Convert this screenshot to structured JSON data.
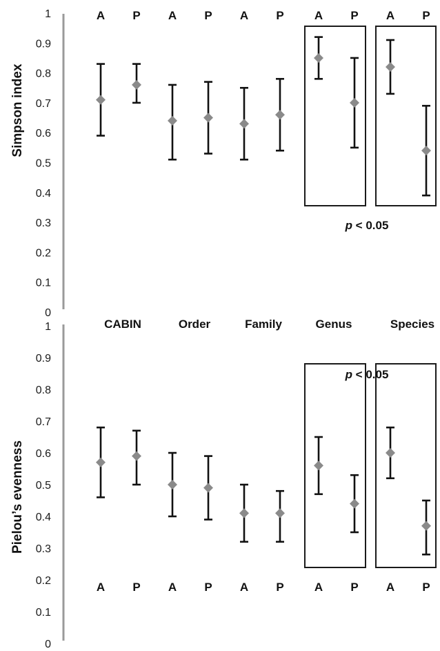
{
  "chart_data": [
    {
      "type": "scatter",
      "ylabel": "Simpson index",
      "ylim": [
        0,
        1
      ],
      "yticks": [
        "0",
        "0.1",
        "0.2",
        "0.3",
        "0.4",
        "0.5",
        "0.6",
        "0.7",
        "0.8",
        "0.9",
        "1"
      ],
      "groups": [
        "CABIN",
        "Order",
        "Family",
        "Genus",
        "Species"
      ],
      "categories": [
        "A",
        "P",
        "A",
        "P",
        "A",
        "P",
        "A",
        "P",
        "A",
        "P"
      ],
      "points": [
        {
          "group": "CABIN",
          "label": "A",
          "mean": 0.71,
          "low": 0.59,
          "high": 0.83
        },
        {
          "group": "CABIN",
          "label": "P",
          "mean": 0.76,
          "low": 0.7,
          "high": 0.83
        },
        {
          "group": "Order",
          "label": "A",
          "mean": 0.64,
          "low": 0.51,
          "high": 0.76
        },
        {
          "group": "Order",
          "label": "P",
          "mean": 0.65,
          "low": 0.53,
          "high": 0.77
        },
        {
          "group": "Family",
          "label": "A",
          "mean": 0.63,
          "low": 0.51,
          "high": 0.75
        },
        {
          "group": "Family",
          "label": "P",
          "mean": 0.66,
          "low": 0.54,
          "high": 0.78
        },
        {
          "group": "Genus",
          "label": "A",
          "mean": 0.85,
          "low": 0.78,
          "high": 0.92
        },
        {
          "group": "Genus",
          "label": "P",
          "mean": 0.7,
          "low": 0.55,
          "high": 0.85
        },
        {
          "group": "Species",
          "label": "A",
          "mean": 0.82,
          "low": 0.73,
          "high": 0.91
        },
        {
          "group": "Species",
          "label": "P",
          "mean": 0.54,
          "low": 0.39,
          "high": 0.69
        }
      ],
      "boxed_groups": [
        "Genus",
        "Species"
      ],
      "significance": {
        "p": "p",
        "text": " < 0.05"
      }
    },
    {
      "type": "scatter",
      "ylabel": "Pielou’s evenness",
      "ylim": [
        0,
        1
      ],
      "yticks": [
        "0",
        "0.1",
        "0.2",
        "0.3",
        "0.4",
        "0.5",
        "0.6",
        "0.7",
        "0.8",
        "0.9",
        "1"
      ],
      "groups": [
        "CABIN",
        "Order",
        "Family",
        "Genus",
        "Species"
      ],
      "categories": [
        "A",
        "P",
        "A",
        "P",
        "A",
        "P",
        "A",
        "P",
        "A",
        "P"
      ],
      "points": [
        {
          "group": "CABIN",
          "label": "A",
          "mean": 0.57,
          "low": 0.46,
          "high": 0.68
        },
        {
          "group": "CABIN",
          "label": "P",
          "mean": 0.59,
          "low": 0.5,
          "high": 0.67
        },
        {
          "group": "Order",
          "label": "A",
          "mean": 0.5,
          "low": 0.4,
          "high": 0.6
        },
        {
          "group": "Order",
          "label": "P",
          "mean": 0.49,
          "low": 0.39,
          "high": 0.59
        },
        {
          "group": "Family",
          "label": "A",
          "mean": 0.41,
          "low": 0.32,
          "high": 0.5
        },
        {
          "group": "Family",
          "label": "P",
          "mean": 0.41,
          "low": 0.32,
          "high": 0.48
        },
        {
          "group": "Genus",
          "label": "A",
          "mean": 0.56,
          "low": 0.47,
          "high": 0.65
        },
        {
          "group": "Genus",
          "label": "P",
          "mean": 0.44,
          "low": 0.35,
          "high": 0.53
        },
        {
          "group": "Species",
          "label": "A",
          "mean": 0.6,
          "low": 0.52,
          "high": 0.68
        },
        {
          "group": "Species",
          "label": "P",
          "mean": 0.37,
          "low": 0.28,
          "high": 0.45
        }
      ],
      "boxed_groups": [
        "Genus",
        "Species"
      ],
      "significance": {
        "p": "p",
        "text": " < 0.05"
      }
    }
  ]
}
